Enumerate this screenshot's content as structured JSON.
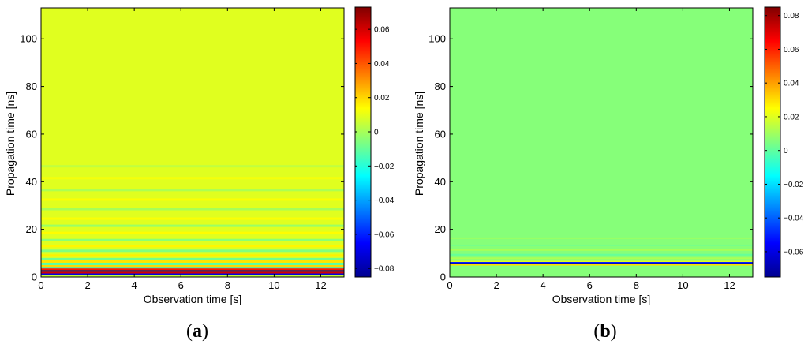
{
  "chart_data": [
    {
      "type": "heatmap",
      "panel_label": "a",
      "xlabel": "Observation time [s]",
      "ylabel": "Propagation time [ns]",
      "xlim": [
        0,
        13
      ],
      "ylim": [
        0,
        113
      ],
      "x_ticks": [
        0,
        2,
        4,
        6,
        8,
        10,
        12
      ],
      "y_ticks": [
        0,
        20,
        40,
        60,
        80,
        100
      ],
      "colorbar": {
        "colormap": "jet",
        "range": [
          -0.085,
          0.073
        ],
        "ticks": [
          -0.08,
          -0.06,
          -0.04,
          -0.02,
          0,
          0.02,
          0.04,
          0.06
        ],
        "tick_labels": [
          "−0.08",
          "−0.06",
          "−0.04",
          "−0.02",
          "0",
          "0.02",
          "0.04",
          "0.06"
        ]
      },
      "background_value": 0.009,
      "bands": [
        {
          "y": [
            0.0,
            0.8
          ],
          "value": 0.004
        },
        {
          "y": [
            0.8,
            1.5
          ],
          "value": -0.07
        },
        {
          "y": [
            1.5,
            2.2
          ],
          "value": 0.06
        },
        {
          "y": [
            2.2,
            2.9
          ],
          "value": -0.085
        },
        {
          "y": [
            2.9,
            3.6
          ],
          "value": 0.05
        },
        {
          "y": [
            3.6,
            4.2
          ],
          "value": -0.03
        },
        {
          "y": [
            4.2,
            5.0
          ],
          "value": 0.02
        },
        {
          "y": [
            5.0,
            6.0
          ],
          "value": -0.012
        },
        {
          "y": [
            6.0,
            7.0
          ],
          "value": 0.018
        },
        {
          "y": [
            7.0,
            8.0
          ],
          "value": -0.008
        },
        {
          "y": [
            8.5,
            9.5
          ],
          "value": 0.016
        },
        {
          "y": [
            10.5,
            11.5
          ],
          "value": -0.006
        },
        {
          "y": [
            12.5,
            13.5
          ],
          "value": 0.015
        },
        {
          "y": [
            15.0,
            16.0
          ],
          "value": -0.004
        },
        {
          "y": [
            18.0,
            19.0
          ],
          "value": 0.014
        },
        {
          "y": [
            21.0,
            22.0
          ],
          "value": -0.002
        },
        {
          "y": [
            24.0,
            25.0
          ],
          "value": 0.013
        },
        {
          "y": [
            28.0,
            29.0
          ],
          "value": 0.0
        },
        {
          "y": [
            32.0,
            33.0
          ],
          "value": 0.013
        },
        {
          "y": [
            36.0,
            37.0
          ],
          "value": 0.001
        },
        {
          "y": [
            41.0,
            42.0
          ],
          "value": 0.012
        },
        {
          "y": [
            46.0,
            47.0
          ],
          "value": 0.004
        }
      ]
    },
    {
      "type": "heatmap",
      "panel_label": "b",
      "xlabel": "Observation time [s]",
      "ylabel": "Propagation time [ns]",
      "xlim": [
        0,
        13
      ],
      "ylim": [
        0,
        113
      ],
      "x_ticks": [
        0,
        2,
        4,
        6,
        8,
        10,
        12
      ],
      "y_ticks": [
        0,
        20,
        40,
        60,
        80,
        100
      ],
      "colorbar": {
        "colormap": "jet",
        "range": [
          -0.075,
          0.085
        ],
        "ticks": [
          -0.06,
          -0.04,
          -0.02,
          0,
          0.02,
          0.04,
          0.06,
          0.08
        ],
        "tick_labels": [
          "−0.06",
          "−0.04",
          "−0.02",
          "0",
          "0.02",
          "0.04",
          "0.06",
          "0.08"
        ]
      },
      "background_value": 0.006,
      "bands": [
        {
          "y": [
            4.8,
            5.3
          ],
          "value": 0.03
        },
        {
          "y": [
            5.3,
            5.8
          ],
          "value": -0.075
        },
        {
          "y": [
            5.8,
            6.3
          ],
          "value": -0.05
        },
        {
          "y": [
            6.3,
            6.8
          ],
          "value": 0.02
        },
        {
          "y": [
            7.5,
            8.2
          ],
          "value": 0.012
        },
        {
          "y": [
            9.0,
            9.7
          ],
          "value": 0.001
        },
        {
          "y": [
            11.0,
            11.6
          ],
          "value": 0.011
        },
        {
          "y": [
            13.0,
            13.6
          ],
          "value": 0.003
        },
        {
          "y": [
            16.0,
            16.6
          ],
          "value": 0.01
        }
      ]
    }
  ]
}
